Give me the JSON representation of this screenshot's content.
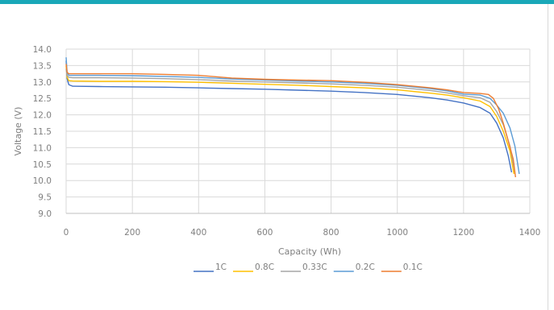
{
  "chart_data": {
    "type": "line",
    "title": "",
    "xlabel": "Capacity (Wh)",
    "ylabel": "Voltage (V)",
    "xlim": [
      0,
      1400
    ],
    "ylim": [
      9.0,
      14.0
    ],
    "x_ticks": [
      "0",
      "200",
      "400",
      "600",
      "800",
      "1000",
      "1200",
      "1400"
    ],
    "y_ticks": [
      "9.0",
      "9.5",
      "10.0",
      "10.5",
      "11.0",
      "11.5",
      "12.0",
      "12.5",
      "13.0",
      "13.5",
      "14.0"
    ],
    "grid": true,
    "legend_position": "bottom",
    "series": [
      {
        "name": "1C",
        "color": "#4472c4",
        "points": [
          [
            0,
            13.65
          ],
          [
            3,
            13.1
          ],
          [
            8,
            12.92
          ],
          [
            20,
            12.87
          ],
          [
            100,
            12.86
          ],
          [
            200,
            12.85
          ],
          [
            300,
            12.84
          ],
          [
            400,
            12.82
          ],
          [
            500,
            12.8
          ],
          [
            600,
            12.78
          ],
          [
            700,
            12.75
          ],
          [
            800,
            12.72
          ],
          [
            900,
            12.68
          ],
          [
            1000,
            12.62
          ],
          [
            1100,
            12.52
          ],
          [
            1150,
            12.45
          ],
          [
            1200,
            12.36
          ],
          [
            1250,
            12.22
          ],
          [
            1280,
            12.05
          ],
          [
            1300,
            11.75
          ],
          [
            1320,
            11.3
          ],
          [
            1335,
            10.75
          ],
          [
            1345,
            10.25
          ]
        ]
      },
      {
        "name": "0.8C",
        "color": "#ffc000",
        "points": [
          [
            0,
            13.5
          ],
          [
            3,
            13.15
          ],
          [
            8,
            13.04
          ],
          [
            20,
            13.03
          ],
          [
            100,
            13.02
          ],
          [
            200,
            13.02
          ],
          [
            300,
            13.01
          ],
          [
            400,
            12.99
          ],
          [
            500,
            12.96
          ],
          [
            600,
            12.93
          ],
          [
            700,
            12.9
          ],
          [
            800,
            12.86
          ],
          [
            900,
            12.82
          ],
          [
            1000,
            12.76
          ],
          [
            1100,
            12.66
          ],
          [
            1150,
            12.6
          ],
          [
            1200,
            12.52
          ],
          [
            1250,
            12.42
          ],
          [
            1280,
            12.25
          ],
          [
            1300,
            11.95
          ],
          [
            1320,
            11.5
          ],
          [
            1340,
            10.9
          ],
          [
            1352,
            10.2
          ]
        ]
      },
      {
        "name": "0.33C",
        "color": "#a5a5a5",
        "points": [
          [
            0,
            13.4
          ],
          [
            3,
            13.2
          ],
          [
            8,
            13.14
          ],
          [
            20,
            13.13
          ],
          [
            100,
            13.13
          ],
          [
            200,
            13.12
          ],
          [
            300,
            13.1
          ],
          [
            400,
            13.07
          ],
          [
            500,
            13.03
          ],
          [
            600,
            13.0
          ],
          [
            700,
            12.97
          ],
          [
            800,
            12.94
          ],
          [
            900,
            12.9
          ],
          [
            1000,
            12.84
          ],
          [
            1100,
            12.74
          ],
          [
            1150,
            12.67
          ],
          [
            1200,
            12.58
          ],
          [
            1250,
            12.52
          ],
          [
            1280,
            12.38
          ],
          [
            1300,
            12.1
          ],
          [
            1320,
            11.7
          ],
          [
            1340,
            11.05
          ],
          [
            1355,
            10.25
          ]
        ]
      },
      {
        "name": "0.2C",
        "color": "#5b9bd5",
        "points": [
          [
            0,
            13.75
          ],
          [
            3,
            13.3
          ],
          [
            8,
            13.2
          ],
          [
            20,
            13.2
          ],
          [
            100,
            13.2
          ],
          [
            200,
            13.19
          ],
          [
            300,
            13.17
          ],
          [
            400,
            13.14
          ],
          [
            500,
            13.09
          ],
          [
            600,
            13.06
          ],
          [
            700,
            13.03
          ],
          [
            800,
            13.0
          ],
          [
            900,
            12.96
          ],
          [
            1000,
            12.9
          ],
          [
            1100,
            12.8
          ],
          [
            1150,
            12.73
          ],
          [
            1200,
            12.63
          ],
          [
            1250,
            12.6
          ],
          [
            1280,
            12.5
          ],
          [
            1300,
            12.3
          ],
          [
            1320,
            12.05
          ],
          [
            1340,
            11.6
          ],
          [
            1355,
            11.05
          ],
          [
            1368,
            10.2
          ]
        ]
      },
      {
        "name": "0.1C",
        "color": "#ed7d31",
        "points": [
          [
            0,
            13.55
          ],
          [
            3,
            13.3
          ],
          [
            8,
            13.25
          ],
          [
            20,
            13.25
          ],
          [
            100,
            13.25
          ],
          [
            200,
            13.25
          ],
          [
            300,
            13.23
          ],
          [
            400,
            13.2
          ],
          [
            500,
            13.12
          ],
          [
            600,
            13.08
          ],
          [
            700,
            13.06
          ],
          [
            800,
            13.04
          ],
          [
            900,
            12.99
          ],
          [
            1000,
            12.92
          ],
          [
            1100,
            12.82
          ],
          [
            1150,
            12.76
          ],
          [
            1200,
            12.68
          ],
          [
            1250,
            12.65
          ],
          [
            1275,
            12.62
          ],
          [
            1290,
            12.5
          ],
          [
            1305,
            12.2
          ],
          [
            1320,
            11.75
          ],
          [
            1335,
            11.2
          ],
          [
            1350,
            10.65
          ],
          [
            1357,
            10.1
          ]
        ]
      }
    ]
  }
}
